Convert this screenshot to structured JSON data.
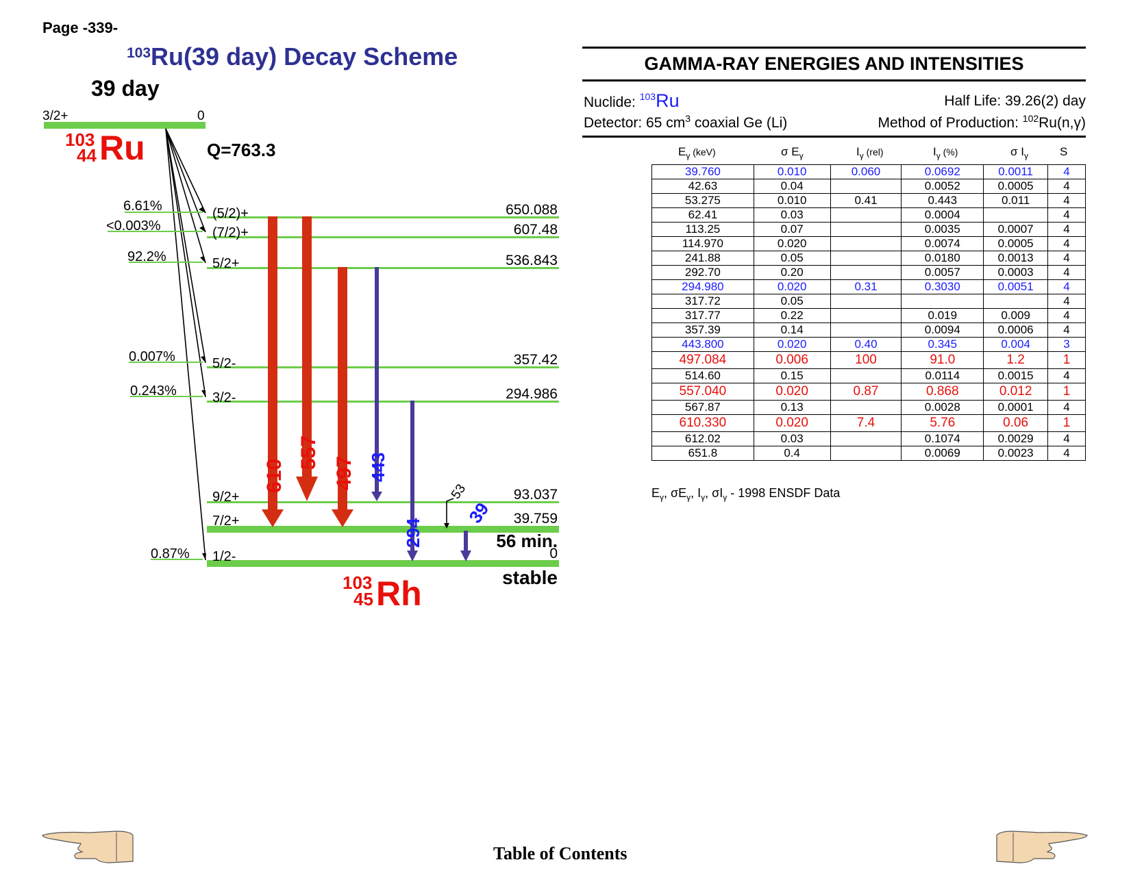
{
  "page_label": "Page -339-",
  "scheme": {
    "title_mass": "103",
    "title_rest": "Ru(39 day) Decay Scheme",
    "parent": {
      "half_life": "39 day",
      "spin": "3/2+",
      "energy": "0",
      "mass": "103",
      "z": "44",
      "symbol": "Ru",
      "q_value": "Q=763.3"
    },
    "daughter": {
      "mass": "103",
      "z": "45",
      "symbol": "Rh",
      "stable_label": "stable",
      "isomer_half_life": "56 min."
    },
    "levels": [
      {
        "spin": "(5/2)+",
        "energy": "650.088",
        "branch": "6.61%"
      },
      {
        "spin": "(7/2)+",
        "energy": "607.48",
        "branch": "<0.003%"
      },
      {
        "spin": "5/2+",
        "energy": "536.843",
        "branch": "92.2%"
      },
      {
        "spin": "5/2-",
        "energy": "357.42",
        "branch": "0.007%"
      },
      {
        "spin": "3/2-",
        "energy": "294.986",
        "branch": "0.243%"
      },
      {
        "spin": "9/2+",
        "energy": "93.037",
        "branch": ""
      },
      {
        "spin": "7/2+",
        "energy": "39.759",
        "branch": ""
      },
      {
        "spin": "1/2-",
        "energy": "0",
        "branch": "0.87%"
      }
    ],
    "transitions": [
      {
        "label": "610",
        "from": "650.088",
        "to": "39.759",
        "color": "#d42e12"
      },
      {
        "label": "557",
        "from": "650.088",
        "to": "93.037",
        "color": "#d42e12"
      },
      {
        "label": "497",
        "from": "536.843",
        "to": "39.759",
        "color": "#d42e12"
      },
      {
        "label": "443",
        "from": "536.843",
        "to": "93.037",
        "color": "#4a3a9a"
      },
      {
        "label": "294",
        "from": "294.986",
        "to": "0",
        "color": "#4a3a9a"
      },
      {
        "label": "53",
        "from": "93.037",
        "to": "39.759",
        "color": "#000000"
      },
      {
        "label": "39",
        "from": "39.759",
        "to": "0",
        "color": "#4a3a9a"
      }
    ],
    "colors": {
      "level": "#6ccd4a",
      "title": "#2e3192",
      "nuclide": "#e8100a",
      "label_blue": "#1a1aff"
    }
  },
  "gamma_panel": {
    "title": "GAMMA-RAY ENERGIES AND INTENSITIES",
    "nuclide_label": "Nuclide:",
    "nuclide_mass": "103",
    "nuclide_symbol": "Ru",
    "half_life": "Half Life: 39.26(2) day",
    "detector_pre": "Detector: 65 cm",
    "detector_sup": "3",
    "detector_post": " coaxial Ge (Li)",
    "method_pre": "Method of Production: ",
    "method_sup": "102",
    "method_post": "Ru(n,γ)",
    "headers": {
      "e_main": "E",
      "e_unit": " (keV)",
      "se_main": "σ E",
      "ir_main": "I",
      "ir_unit": " (rel)",
      "ip_main": "I",
      "ip_unit": " (%)",
      "si_main": "σ I",
      "s": "S",
      "gamma": "γ"
    },
    "rows": [
      {
        "e": "39.760",
        "se": "0.010",
        "ir": "0.060",
        "ip": "0.0692",
        "si": "0.0011",
        "s": "4",
        "style": "blue"
      },
      {
        "e": "42.63",
        "se": "0.04",
        "ir": "",
        "ip": "0.0052",
        "si": "0.0005",
        "s": "4",
        "style": ""
      },
      {
        "e": "53.275",
        "se": "0.010",
        "ir": "0.41",
        "ip": "0.443",
        "si": "0.011",
        "s": "4",
        "style": ""
      },
      {
        "e": "62.41",
        "se": "0.03",
        "ir": "",
        "ip": "0.0004",
        "si": "",
        "s": "4",
        "style": ""
      },
      {
        "e": "113.25",
        "se": "0.07",
        "ir": "",
        "ip": "0.0035",
        "si": "0.0007",
        "s": "4",
        "style": ""
      },
      {
        "e": "114.970",
        "se": "0.020",
        "ir": "",
        "ip": "0.0074",
        "si": "0.0005",
        "s": "4",
        "style": ""
      },
      {
        "e": "241.88",
        "se": "0.05",
        "ir": "",
        "ip": "0.0180",
        "si": "0.0013",
        "s": "4",
        "style": ""
      },
      {
        "e": "292.70",
        "se": "0.20",
        "ir": "",
        "ip": "0.0057",
        "si": "0.0003",
        "s": "4",
        "style": ""
      },
      {
        "e": "294.980",
        "se": "0.020",
        "ir": "0.31",
        "ip": "0.3030",
        "si": "0.0051",
        "s": "4",
        "style": "blue"
      },
      {
        "e": "317.72",
        "se": "0.05",
        "ir": "",
        "ip": "",
        "si": "",
        "s": "4",
        "style": ""
      },
      {
        "e": "317.77",
        "se": "0.22",
        "ir": "",
        "ip": "0.019",
        "si": "0.009",
        "s": "4",
        "style": ""
      },
      {
        "e": "357.39",
        "se": "0.14",
        "ir": "",
        "ip": "0.0094",
        "si": "0.0006",
        "s": "4",
        "style": ""
      },
      {
        "e": "443.800",
        "se": "0.020",
        "ir": "0.40",
        "ip": "0.345",
        "si": "0.004",
        "s": "3",
        "style": "blue"
      },
      {
        "e": "497.084",
        "se": "0.006",
        "ir": "100",
        "ip": "91.0",
        "si": "1.2",
        "s": "1",
        "style": "red"
      },
      {
        "e": "514.60",
        "se": "0.15",
        "ir": "",
        "ip": "0.0114",
        "si": "0.0015",
        "s": "4",
        "style": ""
      },
      {
        "e": "557.040",
        "se": "0.020",
        "ir": "0.87",
        "ip": "0.868",
        "si": "0.012",
        "s": "1",
        "style": "red"
      },
      {
        "e": "567.87",
        "se": "0.13",
        "ir": "",
        "ip": "0.0028",
        "si": "0.0001",
        "s": "4",
        "style": ""
      },
      {
        "e": "610.330",
        "se": "0.020",
        "ir": "7.4",
        "ip": "5.76",
        "si": "0.06",
        "s": "1",
        "style": "red"
      },
      {
        "e": "612.02",
        "se": "0.03",
        "ir": "",
        "ip": "0.1074",
        "si": "0.0029",
        "s": "4",
        "style": ""
      },
      {
        "e": "651.8",
        "se": "0.4",
        "ir": "",
        "ip": "0.0069",
        "si": "0.0023",
        "s": "4",
        "style": ""
      }
    ],
    "footnote_tail": " - 1998 ENSDF Data"
  },
  "footer": {
    "toc_label": "Table of Contents",
    "prev_icon": "pointing-hand-left-icon",
    "next_icon": "pointing-hand-right-icon"
  }
}
